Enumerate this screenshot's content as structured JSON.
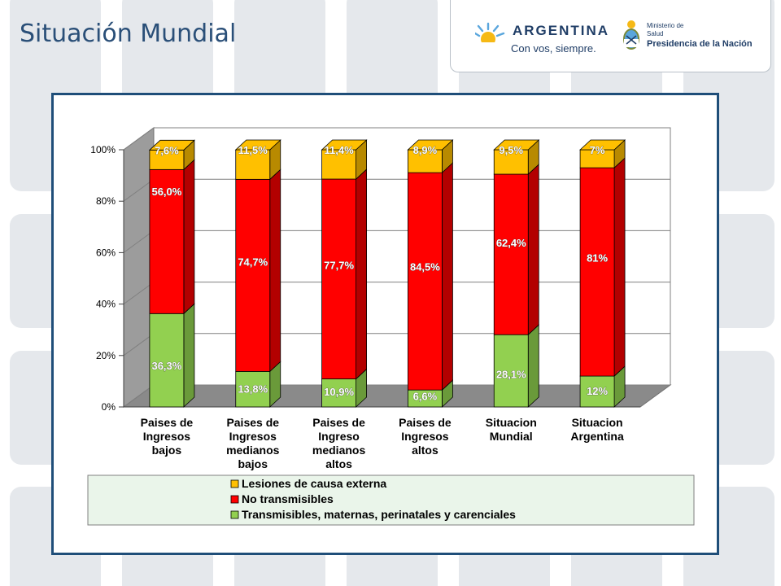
{
  "page": {
    "title": "Situación Mundial",
    "logo": {
      "brand": "ARGENTINA",
      "slogan": "Con vos, siempre.",
      "ministry_line1": "Ministerio de",
      "ministry_line2": "Salud",
      "ministry_line3": "Presidencia de la Nación"
    },
    "colors": {
      "title": "#2a4f78",
      "background_tile": "#e5e8ec",
      "frame": "#1f4e79",
      "legend_bg": "#eaf5ea"
    }
  },
  "chart_data": {
    "type": "bar",
    "stacked": true,
    "three_d": true,
    "categories": [
      [
        "Paises de",
        "Ingresos",
        "bajos"
      ],
      [
        "Paises de",
        "Ingresos",
        "medianos",
        "bajos"
      ],
      [
        "Paises de",
        "Ingreso",
        "medianos",
        "altos"
      ],
      [
        "Paises de",
        "Ingresos",
        "altos"
      ],
      [
        "Situacion",
        "Mundial"
      ],
      [
        "Situacion",
        "Argentina"
      ]
    ],
    "series": [
      {
        "name": "Transmisibles, maternas, perinatales y carenciales",
        "color": "#92d050",
        "values": [
          36.3,
          13.8,
          10.9,
          6.6,
          28.1,
          12
        ],
        "labels": [
          "36,3%",
          "13,8%",
          "10,9%",
          "6,6%",
          "28,1%",
          "12%"
        ]
      },
      {
        "name": "No transmisibles",
        "color": "#ff0000",
        "values": [
          56.0,
          74.7,
          77.7,
          84.5,
          62.4,
          81
        ],
        "labels": [
          "56,0%",
          "74,7%",
          "77,7%",
          "84,5%",
          "62,4%",
          "81%"
        ]
      },
      {
        "name": "Lesiones de causa externa",
        "color": "#ffc000",
        "values": [
          7.6,
          11.5,
          11.4,
          8.9,
          9.5,
          7
        ],
        "labels": [
          "7,6%",
          "11,5%",
          "11,4%",
          "8,9%",
          "9,5%",
          "7%"
        ]
      }
    ],
    "yticks": [
      "0%",
      "20%",
      "40%",
      "60%",
      "80%",
      "100%"
    ],
    "ylim": [
      0,
      100
    ],
    "grid": true,
    "legend": "bottom",
    "xlabel": "",
    "ylabel": ""
  }
}
